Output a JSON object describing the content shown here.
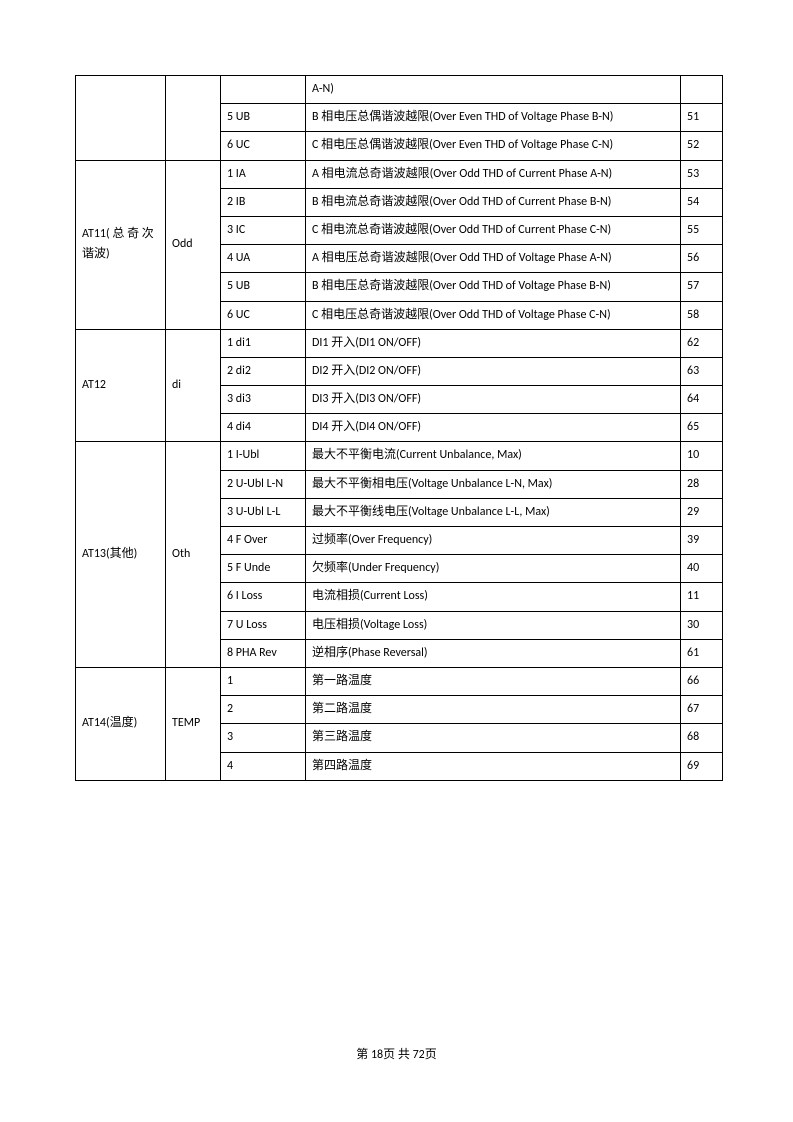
{
  "rows_part0": [
    {
      "c3": null,
      "c4": "A-N)",
      "c5": null
    },
    {
      "c3": "5 UB",
      "c4": "B 相电压总偶谐波越限(Over Even THD of Voltage Phase B-N)",
      "c5": "51"
    },
    {
      "c3": "6 UC",
      "c4": "C 相电压总偶谐波越限(Over Even THD of Voltage Phase C-N)",
      "c5": "52"
    }
  ],
  "group_at11": {
    "c1": "AT11( 总 奇 次谐波)",
    "c2": "Odd",
    "items": [
      {
        "c3": "1 IA",
        "c4": "A 相电流总奇谐波越限(Over Odd THD of Current Phase A-N)",
        "c5": "53"
      },
      {
        "c3": "2 IB",
        "c4": "B 相电流总奇谐波越限(Over Odd THD of Current Phase B-N)",
        "c5": "54"
      },
      {
        "c3": "3 IC",
        "c4": "C 相电流总奇谐波越限(Over Odd THD of Current Phase C-N)",
        "c5": "55"
      },
      {
        "c3": "4 UA",
        "c4": "A 相电压总奇谐波越限(Over Odd THD of Voltage Phase A-N)",
        "c5": "56"
      },
      {
        "c3": "5 UB",
        "c4": "B 相电压总奇谐波越限(Over Odd THD of Voltage Phase B-N)",
        "c5": "57"
      },
      {
        "c3": "6 UC",
        "c4": "C 相电压总奇谐波越限(Over Odd THD of Voltage Phase C-N)",
        "c5": "58"
      }
    ]
  },
  "group_at12": {
    "c1": "AT12",
    "c2": "di",
    "items": [
      {
        "c3": "1 di1",
        "c4": "DI1 开入(DI1 ON/OFF)",
        "c5": "62"
      },
      {
        "c3": "2 di2",
        "c4": "DI2 开入(DI2 ON/OFF)",
        "c5": "63"
      },
      {
        "c3": "3 di3",
        "c4": "DI3 开入(DI3 ON/OFF)",
        "c5": "64"
      },
      {
        "c3": "4 di4",
        "c4": "DI4 开入(DI4 ON/OFF)",
        "c5": "65"
      }
    ]
  },
  "group_at13": {
    "c1": "AT13(其他)",
    "c2": "Oth",
    "items": [
      {
        "c3": "1 I-Ubl",
        "c4": "最大不平衡电流(Current Unbalance, Max)",
        "c5": "10"
      },
      {
        "c3": "2 U-Ubl L-N",
        "c4": "最大不平衡相电压(Voltage Unbalance L-N, Max)",
        "c5": "28"
      },
      {
        "c3": "3 U-Ubl L-L",
        "c4": "最大不平衡线电压(Voltage Unbalance L-L, Max)",
        "c5": "29"
      },
      {
        "c3": "4 F Over",
        "c4": "过频率(Over Frequency)",
        "c5": "39"
      },
      {
        "c3": "5 F Unde",
        "c4": "欠频率(Under Frequency)",
        "c5": "40"
      },
      {
        "c3": "6 I Loss",
        "c4": "电流相损(Current Loss)",
        "c5": "11"
      },
      {
        "c3": "7 U Loss",
        "c4": "电压相损(Voltage Loss)",
        "c5": "30"
      },
      {
        "c3": "8 PHA Rev",
        "c4": "逆相序(Phase Reversal)",
        "c5": "61"
      }
    ]
  },
  "group_at14": {
    "c1": "AT14(温度)",
    "c2": "TEMP",
    "items": [
      {
        "c3": "1",
        "c4": "第一路温度",
        "c5": "66"
      },
      {
        "c3": "2",
        "c4": "第二路温度",
        "c5": "67"
      },
      {
        "c3": "3",
        "c4": "第三路温度",
        "c5": "68"
      },
      {
        "c3": "4",
        "c4": "第四路温度",
        "c5": "69"
      }
    ]
  },
  "footer": "第 18页  共 72页"
}
